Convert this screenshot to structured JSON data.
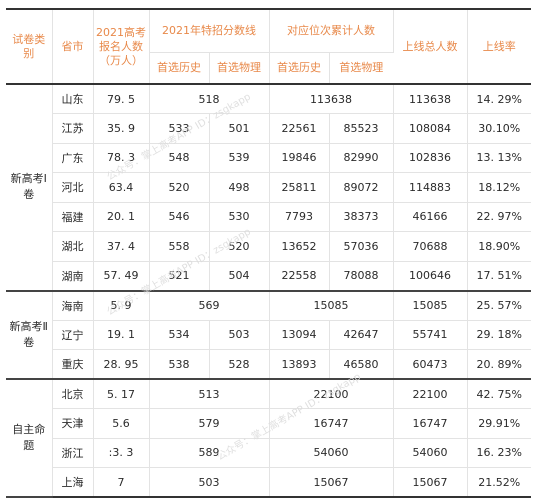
{
  "headers": {
    "group": "试卷类别",
    "province": "省市",
    "applicants": "2021高考报名人数（万人）",
    "special_line": "2021年特招分数线",
    "cumulative": "对应位次累计人数",
    "sub_history": "首选历史",
    "sub_physics": "首选物理",
    "total": "上线总人数",
    "rate": "上线率"
  },
  "groups": [
    {
      "label": "新高考Ⅰ卷",
      "rows": [
        {
          "province": "山东",
          "applicants": "79. 5",
          "line_merged": "518",
          "cum_merged": "113638",
          "total": "113638",
          "rate": "14. 29%"
        },
        {
          "province": "江苏",
          "applicants": "35. 9",
          "line_hist": "533",
          "line_phys": "501",
          "cum_hist": "22561",
          "cum_phys": "85523",
          "total": "108084",
          "rate": "30.10%"
        },
        {
          "province": "广东",
          "applicants": "78. 3",
          "line_hist": "548",
          "line_phys": "539",
          "cum_hist": "19846",
          "cum_phys": "82990",
          "total": "102836",
          "rate": "13. 13%"
        },
        {
          "province": "河北",
          "applicants": "63.4",
          "line_hist": "520",
          "line_phys": "498",
          "cum_hist": "25811",
          "cum_phys": "89072",
          "total": "114883",
          "rate": "18.12%"
        },
        {
          "province": "福建",
          "applicants": "20. 1",
          "line_hist": "546",
          "line_phys": "530",
          "cum_hist": "7793",
          "cum_phys": "38373",
          "total": "46166",
          "rate": "22. 97%"
        },
        {
          "province": "湖北",
          "applicants": "37. 4",
          "line_hist": "558",
          "line_phys": "520",
          "cum_hist": "13652",
          "cum_phys": "57036",
          "total": "70688",
          "rate": "18.90%"
        },
        {
          "province": "湖南",
          "applicants": "57. 49",
          "line_hist": "521",
          "line_phys": "504",
          "cum_hist": "22558",
          "cum_phys": "78088",
          "total": "100646",
          "rate": "17. 51%"
        }
      ]
    },
    {
      "label": "新高考Ⅱ卷",
      "rows": [
        {
          "province": "海南",
          "applicants": "5. 9",
          "line_merged": "569",
          "cum_merged": "15085",
          "total": "15085",
          "rate": "25. 57%"
        },
        {
          "province": "辽宁",
          "applicants": "19. 1",
          "line_hist": "534",
          "line_phys": "503",
          "cum_hist": "13094",
          "cum_phys": "42647",
          "total": "55741",
          "rate": "29. 18%"
        },
        {
          "province": "重庆",
          "applicants": "28. 95",
          "line_hist": "538",
          "line_phys": "528",
          "cum_hist": "13893",
          "cum_phys": "46580",
          "total": "60473",
          "rate": "20. 89%"
        }
      ]
    },
    {
      "label": "自主命题",
      "rows": [
        {
          "province": "北京",
          "applicants": "5. 17",
          "line_merged": "513",
          "cum_merged": "22100",
          "total": "22100",
          "rate": "42. 75%"
        },
        {
          "province": "天津",
          "applicants": "5.6",
          "line_merged": "579",
          "cum_merged": "16747",
          "total": "16747",
          "rate": "29.91%"
        },
        {
          "province": "浙江",
          "applicants": ":3. 3",
          "line_merged": "589",
          "cum_merged": "54060",
          "total": "54060",
          "rate": "16. 23%"
        },
        {
          "province": "上海",
          "applicants": "7",
          "line_merged": "503",
          "cum_merged": "15067",
          "total": "15067",
          "rate": "21.52%"
        }
      ]
    }
  ],
  "watermark": "公众号：掌上高考APP ID：zsgkapp",
  "colors": {
    "header_text": "#e8894a",
    "rule": "#333333",
    "grid": "#e3e3e3"
  }
}
